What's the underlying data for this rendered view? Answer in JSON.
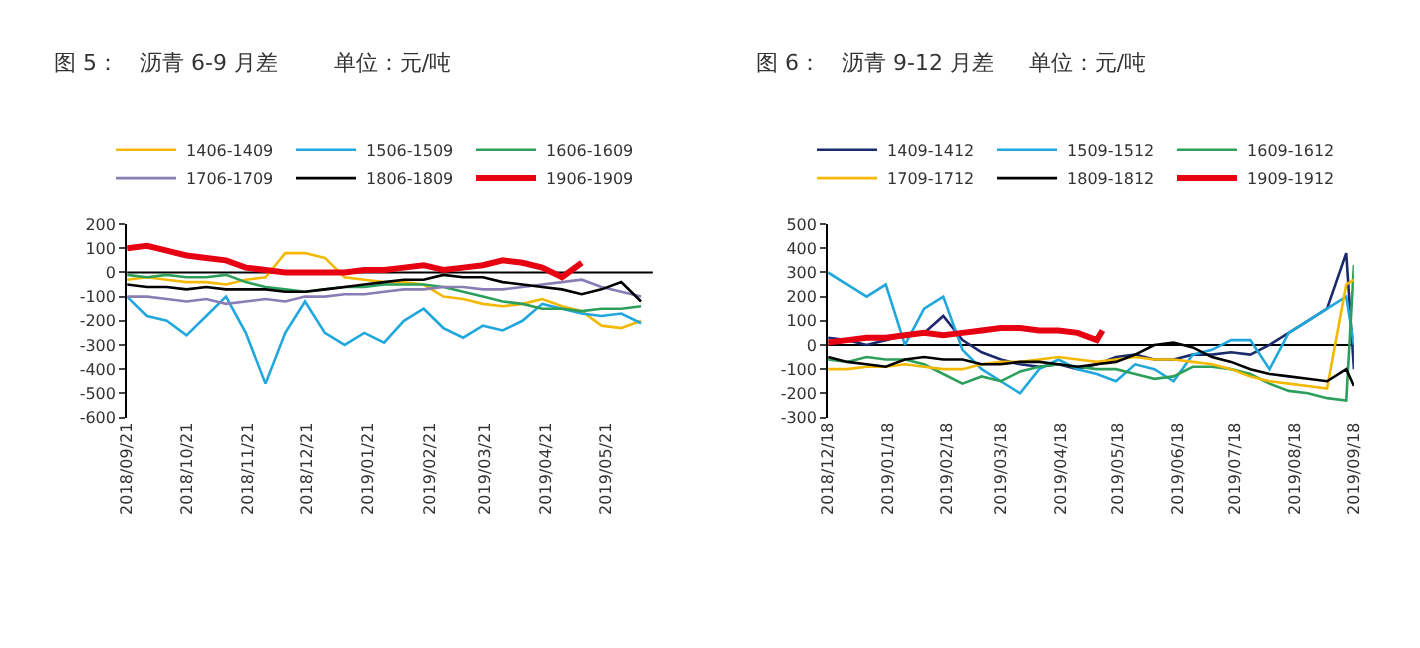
{
  "chart_data": [
    {
      "type": "line",
      "title": "图 5：   沥青 6-9 月差        单位：元/吨",
      "legend": "top",
      "grid": false,
      "ref_lines": [
        {
          "axis": "y",
          "value": 0,
          "color": "#000000"
        }
      ],
      "marker": "none",
      "line_style": "solid",
      "x": [
        "2018-09-21",
        "2018-10-01",
        "2018-10-11",
        "2018-10-21",
        "2018-10-31",
        "2018-11-10",
        "2018-11-20",
        "2018-11-30",
        "2018-12-10",
        "2018-12-20",
        "2018-12-30",
        "2019-01-09",
        "2019-01-19",
        "2019-01-29",
        "2019-02-08",
        "2019-02-18",
        "2019-02-28",
        "2019-03-10",
        "2019-03-20",
        "2019-03-30",
        "2019-04-09",
        "2019-04-19",
        "2019-04-29",
        "2019-05-09",
        "2019-05-19",
        "2019-05-29",
        "2019-06-08"
      ],
      "xlim": [
        "2018-09-21",
        "2019-06-14"
      ],
      "xticks": [
        {
          "value": "2018-09-21",
          "label": "2018/09/21"
        },
        {
          "value": "2018-10-21",
          "label": "2018/10/21"
        },
        {
          "value": "2018-11-21",
          "label": "2018/11/21"
        },
        {
          "value": "2018-12-21",
          "label": "2018/12/21"
        },
        {
          "value": "2019-01-21",
          "label": "2019/01/21"
        },
        {
          "value": "2019-02-21",
          "label": "2019/02/21"
        },
        {
          "value": "2019-03-21",
          "label": "2019/03/21"
        },
        {
          "value": "2019-04-21",
          "label": "2019/04/21"
        },
        {
          "value": "2019-05-21",
          "label": "2019/05/21"
        }
      ],
      "ylim": [
        -600,
        200
      ],
      "yticks": [
        -600,
        -500,
        -400,
        -300,
        -200,
        -100,
        0,
        100,
        200
      ],
      "series": [
        {
          "name": "1406-1409",
          "color": "#f5b800",
          "values": [
            -30,
            -20,
            -30,
            -40,
            -40,
            -50,
            -30,
            -20,
            80,
            80,
            60,
            -20,
            -30,
            -40,
            -40,
            -50,
            -100,
            -110,
            -130,
            -140,
            -130,
            -110,
            -140,
            -160,
            -220,
            -230,
            -200
          ]
        },
        {
          "name": "1506-1509",
          "color": "#1fa7de",
          "values": [
            -100,
            -180,
            -200,
            -260,
            -180,
            -100,
            -250,
            -460,
            -250,
            -120,
            -250,
            -300,
            -250,
            -290,
            -200,
            -150,
            -230,
            -270,
            -220,
            -240,
            -200,
            -130,
            -150,
            -170,
            -180,
            -170,
            -210
          ]
        },
        {
          "name": "1606-1609",
          "color": "#2ca05a",
          "values": [
            -10,
            -20,
            -10,
            -20,
            -20,
            -10,
            -40,
            -60,
            -70,
            -80,
            -70,
            -60,
            -60,
            -50,
            -50,
            -50,
            -60,
            -80,
            -100,
            -120,
            -130,
            -150,
            -150,
            -160,
            -150,
            -150,
            -140
          ]
        },
        {
          "name": "1706-1709",
          "color": "#8a7db5",
          "values": [
            -100,
            -100,
            -110,
            -120,
            -110,
            -130,
            -120,
            -110,
            -120,
            -100,
            -100,
            -90,
            -90,
            -80,
            -70,
            -70,
            -60,
            -60,
            -70,
            -70,
            -60,
            -50,
            -40,
            -30,
            -60,
            -80,
            -100
          ]
        },
        {
          "name": "1806-1809",
          "color": "#000000",
          "values": [
            -50,
            -60,
            -60,
            -70,
            -60,
            -70,
            -70,
            -70,
            -80,
            -80,
            -70,
            -60,
            -50,
            -40,
            -30,
            -30,
            -10,
            -20,
            -20,
            -40,
            -50,
            -60,
            -70,
            -90,
            -70,
            -40,
            -120
          ]
        },
        {
          "name": "1906-1909",
          "color": "#e60012",
          "x": [
            "2018-09-21",
            "2018-10-01",
            "2018-10-11",
            "2018-10-21",
            "2018-10-31",
            "2018-11-10",
            "2018-11-20",
            "2018-11-30",
            "2018-12-10",
            "2018-12-20",
            "2018-12-30",
            "2019-01-09",
            "2019-01-19",
            "2019-01-29",
            "2019-02-08",
            "2019-02-18",
            "2019-02-28",
            "2019-03-10",
            "2019-03-20",
            "2019-03-30",
            "2019-04-09",
            "2019-04-19",
            "2019-04-29",
            "2019-05-09"
          ],
          "values": [
            100,
            110,
            90,
            70,
            60,
            50,
            20,
            10,
            0,
            0,
            0,
            0,
            10,
            10,
            20,
            30,
            10,
            20,
            30,
            50,
            40,
            20,
            -20,
            40
          ]
        }
      ]
    },
    {
      "type": "line",
      "title": "图 6：   沥青 9-12 月差     单位：元/吨",
      "legend": "top",
      "grid": false,
      "ref_lines": [
        {
          "axis": "y",
          "value": 0,
          "color": "#000000"
        }
      ],
      "marker": "none",
      "line_style": "solid",
      "x": [
        "2018-12-18",
        "2018-12-28",
        "2019-01-07",
        "2019-01-17",
        "2019-01-27",
        "2019-02-06",
        "2019-02-16",
        "2019-02-26",
        "2019-03-08",
        "2019-03-18",
        "2019-03-28",
        "2019-04-07",
        "2019-04-17",
        "2019-04-27",
        "2019-05-07",
        "2019-05-17",
        "2019-05-27",
        "2019-06-06",
        "2019-06-16",
        "2019-06-26",
        "2019-07-06",
        "2019-07-16",
        "2019-07-26",
        "2019-08-05",
        "2019-08-15",
        "2019-08-25",
        "2019-09-04",
        "2019-09-14",
        "2019-09-18"
      ],
      "xlim": [
        "2018-12-18",
        "2019-09-18"
      ],
      "xticks": [
        {
          "value": "2018-12-18",
          "label": "2018/12/18"
        },
        {
          "value": "2019-01-18",
          "label": "2019/01/18"
        },
        {
          "value": "2019-02-18",
          "label": "2019/02/18"
        },
        {
          "value": "2019-03-18",
          "label": "2019/03/18"
        },
        {
          "value": "2019-04-18",
          "label": "2019/04/18"
        },
        {
          "value": "2019-05-18",
          "label": "2019/05/18"
        },
        {
          "value": "2019-06-18",
          "label": "2019/06/18"
        },
        {
          "value": "2019-07-18",
          "label": "2019/07/18"
        },
        {
          "value": "2019-08-18",
          "label": "2019/08/18"
        },
        {
          "value": "2019-09-18",
          "label": "2019/09/18"
        }
      ],
      "ylim": [
        -300,
        500
      ],
      "yticks": [
        -300,
        -200,
        -100,
        0,
        100,
        200,
        300,
        400,
        500
      ],
      "series": [
        {
          "name": "1409-1412",
          "color": "#1a2a6c",
          "values": [
            30,
            20,
            0,
            20,
            40,
            50,
            120,
            20,
            -30,
            -60,
            -80,
            -90,
            -80,
            -100,
            -80,
            -50,
            -40,
            -60,
            -60,
            -40,
            -40,
            -30,
            -40,
            0,
            50,
            100,
            150,
            380,
            -100
          ]
        },
        {
          "name": "1509-1512",
          "color": "#1fa7de",
          "values": [
            300,
            250,
            200,
            250,
            0,
            150,
            200,
            -20,
            -100,
            -150,
            -200,
            -100,
            -60,
            -100,
            -120,
            -150,
            -80,
            -100,
            -150,
            -40,
            -20,
            20,
            20,
            -100,
            50,
            100,
            150,
            200,
            0
          ]
        },
        {
          "name": "1609-1612",
          "color": "#2ca05a",
          "values": [
            -60,
            -70,
            -50,
            -60,
            -60,
            -80,
            -120,
            -160,
            -130,
            -150,
            -110,
            -90,
            -80,
            -90,
            -100,
            -100,
            -120,
            -140,
            -130,
            -90,
            -90,
            -100,
            -120,
            -160,
            -190,
            -200,
            -220,
            -230,
            330
          ]
        },
        {
          "name": "1709-1712",
          "color": "#f5b800",
          "values": [
            -100,
            -100,
            -90,
            -90,
            -80,
            -90,
            -100,
            -100,
            -80,
            -70,
            -70,
            -60,
            -50,
            -60,
            -70,
            -60,
            -50,
            -60,
            -60,
            -70,
            -80,
            -100,
            -130,
            -150,
            -160,
            -170,
            -180,
            250,
            270
          ]
        },
        {
          "name": "1809-1812",
          "color": "#000000",
          "values": [
            -50,
            -70,
            -80,
            -90,
            -60,
            -50,
            -60,
            -60,
            -80,
            -80,
            -70,
            -70,
            -80,
            -90,
            -80,
            -70,
            -40,
            0,
            10,
            -10,
            -50,
            -70,
            -100,
            -120,
            -130,
            -140,
            -150,
            -100,
            -170
          ]
        },
        {
          "name": "1909-1912",
          "color": "#e60012",
          "x": [
            "2018-12-18",
            "2018-12-28",
            "2019-01-07",
            "2019-01-17",
            "2019-01-27",
            "2019-02-06",
            "2019-02-16",
            "2019-02-26",
            "2019-03-08",
            "2019-03-18",
            "2019-03-28",
            "2019-04-07",
            "2019-04-17",
            "2019-04-27",
            "2019-05-07",
            "2019-05-10"
          ],
          "values": [
            10,
            20,
            30,
            30,
            40,
            50,
            40,
            50,
            60,
            70,
            70,
            60,
            60,
            50,
            20,
            60
          ]
        }
      ]
    }
  ]
}
